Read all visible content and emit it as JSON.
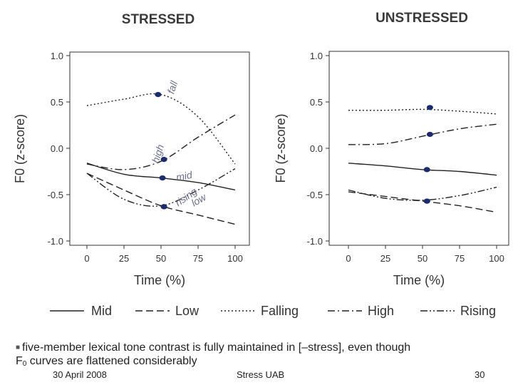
{
  "chart_data": [
    {
      "type": "line",
      "title": "STRESSED",
      "xlabel": "Time (%)",
      "ylabel": "F0 (z-score)",
      "xlim": [
        0,
        100
      ],
      "ylim": [
        -1.0,
        1.0
      ],
      "x_ticks": [
        0,
        25,
        50,
        75,
        100
      ],
      "y_ticks": [
        -1.0,
        -0.5,
        0.0,
        0.5,
        1.0
      ],
      "x_tick_labels": [
        "0",
        "25",
        "50",
        "75",
        "100"
      ],
      "y_tick_labels": [
        "-1.0",
        "-0.5",
        "0.0",
        "0.5",
        "1.0"
      ],
      "x": [
        0,
        25,
        50,
        75,
        100
      ],
      "series": [
        {
          "name": "Falling",
          "style": "dotted",
          "values": [
            0.46,
            0.53,
            0.58,
            0.34,
            -0.17
          ],
          "marker_x": 48,
          "marker_y": 0.58,
          "annotation": "fall"
        },
        {
          "name": "High",
          "style": "dashdot",
          "values": [
            -0.17,
            -0.23,
            -0.14,
            0.12,
            0.36
          ],
          "marker_x": 52,
          "marker_y": -0.12,
          "annotation": "high"
        },
        {
          "name": "Mid",
          "style": "solid",
          "values": [
            -0.16,
            -0.28,
            -0.32,
            -0.37,
            -0.45
          ],
          "marker_x": 51,
          "marker_y": -0.32,
          "annotation": "mid"
        },
        {
          "name": "Rising",
          "style": "dashdotdot",
          "values": [
            -0.27,
            -0.55,
            -0.62,
            -0.45,
            -0.22
          ],
          "marker_x": 52,
          "marker_y": -0.63,
          "annotation": "rising"
        },
        {
          "name": "Low",
          "style": "dashed",
          "values": [
            -0.27,
            -0.45,
            -0.62,
            -0.72,
            -0.82
          ],
          "marker_x": 52,
          "marker_y": -0.63,
          "annotation": "low"
        }
      ]
    },
    {
      "type": "line",
      "title": "UNSTRESSED",
      "xlabel": "Time (%)",
      "ylabel": "F0 (z-score)",
      "xlim": [
        0,
        100
      ],
      "ylim": [
        -1.0,
        1.0
      ],
      "x_ticks": [
        0,
        25,
        50,
        75,
        100
      ],
      "y_ticks": [
        -1.0,
        -0.5,
        0.0,
        0.5,
        1.0
      ],
      "x_tick_labels": [
        "0",
        "25",
        "50",
        "75",
        "100"
      ],
      "y_tick_labels": [
        "-1.0",
        "-0.5",
        "0.0",
        "0.5",
        "1.0"
      ],
      "x": [
        0,
        25,
        50,
        75,
        100
      ],
      "series": [
        {
          "name": "Falling",
          "style": "dotted",
          "values": [
            0.41,
            0.41,
            0.42,
            0.4,
            0.37
          ],
          "marker_x": 55,
          "marker_y": 0.44
        },
        {
          "name": "High",
          "style": "dashdot",
          "values": [
            0.04,
            0.05,
            0.13,
            0.21,
            0.26
          ],
          "marker_x": 55,
          "marker_y": 0.15
        },
        {
          "name": "Mid",
          "style": "solid",
          "values": [
            -0.16,
            -0.19,
            -0.23,
            -0.25,
            -0.29
          ],
          "marker_x": 53,
          "marker_y": -0.23
        },
        {
          "name": "Rising",
          "style": "dashdotdot",
          "values": [
            -0.45,
            -0.54,
            -0.56,
            -0.51,
            -0.42
          ],
          "marker_x": 53,
          "marker_y": -0.57
        },
        {
          "name": "Low",
          "style": "dashed",
          "values": [
            -0.47,
            -0.52,
            -0.57,
            -0.62,
            -0.69
          ],
          "marker_x": 53,
          "marker_y": -0.57
        }
      ]
    }
  ],
  "legend": [
    {
      "name": "Mid",
      "style": "solid"
    },
    {
      "name": "Low",
      "style": "dashed"
    },
    {
      "name": "Falling",
      "style": "dotted"
    },
    {
      "name": "High",
      "style": "dashdot"
    },
    {
      "name": "Rising",
      "style": "dashdotdot"
    }
  ],
  "colors": {
    "lines": "#222222",
    "markers": "#1b2b6b",
    "handwriting": "#6b6f8a"
  },
  "bullet": {
    "line1": "five-member lexical tone contrast is fully maintained in [–stress], even though",
    "line2_prefix": "F",
    "line2_sub": "0",
    "line2_rest": " curves are flattened considerably"
  },
  "footer": {
    "date": "30 April 2008",
    "center": "Stress UAB",
    "page": "30"
  }
}
